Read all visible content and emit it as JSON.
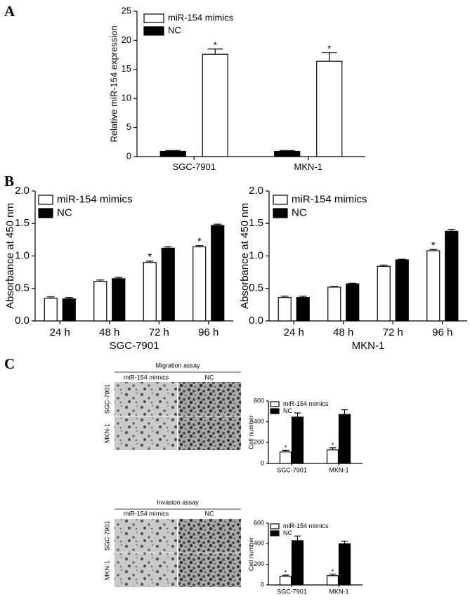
{
  "panel_labels": [
    "A",
    "B",
    "C"
  ],
  "chart_data": [
    {
      "type": "bar",
      "ylabel": "Relative miR-154 expression",
      "categories": [
        "SGC-7901",
        "MKN-1"
      ],
      "series": [
        {
          "name": "NC",
          "color": "#000000",
          "values": [
            0.9,
            0.9
          ],
          "errors": [
            0.15,
            0.15
          ],
          "annotations": [
            null,
            null
          ]
        },
        {
          "name": "miR-154 mimics",
          "color": "#ffffff",
          "values": [
            17.6,
            16.4
          ],
          "errors": [
            0.9,
            1.5
          ],
          "annotations": [
            "*",
            "*"
          ]
        }
      ],
      "ylim": [
        0,
        25
      ],
      "yticks": [
        0,
        5,
        10,
        15,
        20,
        25
      ],
      "legend": "upper left",
      "legend_reversed": true
    },
    {
      "type": "bar",
      "ylabel": "Absorbance at 450 nm",
      "xlabel": "SGC-7901",
      "categories": [
        "24 h",
        "48 h",
        "72 h",
        "96 h"
      ],
      "series": [
        {
          "name": "miR-154 mimics",
          "color": "#ffffff",
          "values": [
            0.35,
            0.61,
            0.9,
            1.14
          ],
          "errors": [
            0.02,
            0.02,
            0.02,
            0.02
          ],
          "annotations": [
            null,
            null,
            "*",
            "*"
          ]
        },
        {
          "name": "NC",
          "color": "#000000",
          "values": [
            0.34,
            0.65,
            1.12,
            1.47
          ],
          "errors": [
            0.02,
            0.02,
            0.02,
            0.02
          ],
          "annotations": [
            null,
            null,
            null,
            null
          ]
        }
      ],
      "ylim": [
        0,
        2
      ],
      "yticks": [
        {
          "value": 0,
          "label": "0.0"
        },
        0.5,
        {
          "value": 1,
          "label": "1.0"
        },
        1.5,
        {
          "value": 2,
          "label": "2.0"
        }
      ],
      "legend": "upper left"
    },
    {
      "type": "bar",
      "ylabel": "Absorbance at 450 nm",
      "xlabel": "MKN-1",
      "categories": [
        "24 h",
        "48 h",
        "72 h",
        "96 h"
      ],
      "series": [
        {
          "name": "miR-154 mimics",
          "color": "#ffffff",
          "values": [
            0.36,
            0.52,
            0.84,
            1.08
          ],
          "errors": [
            0.02,
            0.01,
            0.02,
            0.02
          ],
          "annotations": [
            null,
            null,
            null,
            "*"
          ]
        },
        {
          "name": "NC",
          "color": "#000000",
          "values": [
            0.36,
            0.57,
            0.94,
            1.38
          ],
          "errors": [
            0.02,
            0.01,
            0.01,
            0.03
          ],
          "annotations": [
            null,
            null,
            null,
            null
          ]
        }
      ],
      "ylim": [
        0,
        2
      ],
      "yticks": [
        {
          "value": 0,
          "label": "0.0"
        },
        0.5,
        {
          "value": 1,
          "label": "1.0"
        },
        1.5,
        {
          "value": 2,
          "label": "2.0"
        }
      ],
      "legend": "upper left"
    },
    {
      "type": "bar",
      "ylabel": "Cell number",
      "categories": [
        "SGC-7901",
        "MKN-1"
      ],
      "series": [
        {
          "name": "miR-154 mimics",
          "color": "#ffffff",
          "values": [
            110,
            130
          ],
          "errors": [
            15,
            20
          ],
          "annotations": [
            "*",
            "*"
          ]
        },
        {
          "name": "NC",
          "color": "#000000",
          "values": [
            445,
            470
          ],
          "errors": [
            40,
            45
          ],
          "annotations": [
            null,
            null
          ]
        }
      ],
      "ylim": [
        0,
        600
      ],
      "yticks": [
        0,
        200,
        400,
        600
      ],
      "legend": "upper left"
    },
    {
      "type": "bar",
      "ylabel": "Cell number",
      "categories": [
        "SGC-7901",
        "MKN-1"
      ],
      "series": [
        {
          "name": "miR-154 mimics",
          "color": "#ffffff",
          "values": [
            85,
            90
          ],
          "errors": [
            10,
            15
          ],
          "annotations": [
            "*",
            "*"
          ]
        },
        {
          "name": "NC",
          "color": "#000000",
          "values": [
            430,
            400
          ],
          "errors": [
            45,
            25
          ],
          "annotations": [
            null,
            null
          ]
        }
      ],
      "ylim": [
        0,
        600
      ],
      "yticks": [
        0,
        200,
        400,
        600
      ],
      "legend": "upper left"
    }
  ],
  "micrographs": [
    {
      "title": "Migration assay",
      "columns": [
        "miR-154 mimics",
        "NC"
      ],
      "rows": [
        "SGC-7901",
        "MKN-1"
      ]
    },
    {
      "title": "Invasion assay",
      "columns": [
        "miR-154 mimics",
        "NC"
      ],
      "rows": [
        "SGC-7901",
        "MKN-1"
      ]
    }
  ]
}
